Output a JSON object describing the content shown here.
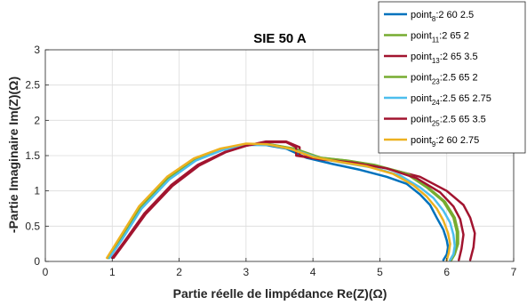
{
  "chart_data": {
    "type": "line",
    "title": "SIE 50 A",
    "xlabel": "Partie réelle de limpédance Re(Z)(Ω)",
    "ylabel": "-Partie Imaginaire Im(Z)(Ω)",
    "xlim": [
      0,
      7
    ],
    "ylim": [
      0,
      3
    ],
    "xticks": [
      0,
      1,
      2,
      3,
      4,
      5,
      6,
      7
    ],
    "yticks": [
      0,
      0.5,
      1,
      1.5,
      2,
      2.5,
      3
    ],
    "ytick_labels": [
      "0",
      "0.5",
      "1",
      "1.5",
      "2",
      "2.5",
      "3"
    ],
    "grid": true,
    "legend_position": "top-right",
    "series": [
      {
        "name": "point8:2 60 2.5",
        "label_main": "point",
        "label_sub": "8",
        "label_rest": ":2 60 2.5",
        "color": "#0072BD",
        "x": [
          0.95,
          1.1,
          1.4,
          1.8,
          2.2,
          2.6,
          3.0,
          3.3,
          3.6,
          3.9,
          4.3,
          4.7,
          5.1,
          5.4,
          5.6,
          5.75,
          5.85,
          5.95,
          6.0,
          6.02,
          6.0,
          5.95
        ],
        "y": [
          0.05,
          0.3,
          0.75,
          1.15,
          1.42,
          1.58,
          1.66,
          1.65,
          1.6,
          1.47,
          1.38,
          1.3,
          1.2,
          1.1,
          0.95,
          0.8,
          0.62,
          0.45,
          0.3,
          0.2,
          0.1,
          0.02
        ]
      },
      {
        "name": "point11:2 65 2",
        "label_main": "point",
        "label_sub": "11",
        "label_rest": ":2 65 2",
        "color": "#77AC30",
        "x": [
          0.93,
          1.12,
          1.42,
          1.83,
          2.23,
          2.63,
          3.02,
          3.35,
          3.7,
          4.1,
          4.5,
          4.9,
          5.4,
          5.7,
          5.95,
          6.1,
          6.15,
          6.15,
          6.1,
          6.05
        ],
        "y": [
          0.05,
          0.3,
          0.76,
          1.17,
          1.44,
          1.59,
          1.66,
          1.66,
          1.6,
          1.47,
          1.43,
          1.37,
          1.24,
          1.05,
          0.85,
          0.62,
          0.42,
          0.25,
          0.1,
          0.02
        ]
      },
      {
        "name": "point13:2 65 3.5",
        "label_main": "point",
        "label_sub": "13",
        "label_rest": ":2 65 3.5",
        "color": "#A2142F",
        "x": [
          1.02,
          1.2,
          1.5,
          1.9,
          2.3,
          2.7,
          3.0,
          3.3,
          3.6,
          3.8,
          3.8,
          4.1,
          4.6,
          5.1,
          5.6,
          6.0,
          6.25,
          6.35,
          6.42,
          6.4,
          6.35
        ],
        "y": [
          0.05,
          0.28,
          0.67,
          1.07,
          1.36,
          1.55,
          1.64,
          1.7,
          1.7,
          1.62,
          1.5,
          1.45,
          1.4,
          1.32,
          1.2,
          1.0,
          0.8,
          0.62,
          0.4,
          0.2,
          0.02
        ]
      },
      {
        "name": "point23:2.5 65 2",
        "label_main": "point",
        "label_sub": "23",
        "label_rest": ":2.5 65 2",
        "color": "#77AC30",
        "x": [
          0.94,
          1.13,
          1.43,
          1.84,
          2.24,
          2.64,
          3.03,
          3.36,
          3.72,
          4.12,
          4.52,
          4.92,
          5.42,
          5.72,
          5.97,
          6.12,
          6.17,
          6.17,
          6.12,
          6.07
        ],
        "y": [
          0.05,
          0.3,
          0.76,
          1.17,
          1.44,
          1.59,
          1.66,
          1.66,
          1.6,
          1.47,
          1.43,
          1.37,
          1.24,
          1.05,
          0.85,
          0.62,
          0.42,
          0.25,
          0.1,
          0.02
        ]
      },
      {
        "name": "point24:2.5 65 2.75",
        "label_main": "point",
        "label_sub": "24",
        "label_rest": ":2.5 65 2.75",
        "color": "#4DBEEE",
        "x": [
          0.96,
          1.14,
          1.44,
          1.85,
          2.25,
          2.65,
          3.04,
          3.37,
          3.72,
          4.1,
          4.5,
          4.9,
          5.3,
          5.6,
          5.8,
          5.95,
          6.05,
          6.1,
          6.12,
          6.1,
          6.05
        ],
        "y": [
          0.05,
          0.3,
          0.75,
          1.16,
          1.43,
          1.58,
          1.65,
          1.65,
          1.58,
          1.46,
          1.39,
          1.33,
          1.22,
          1.05,
          0.9,
          0.72,
          0.55,
          0.38,
          0.22,
          0.1,
          0.02
        ]
      },
      {
        "name": "point25:2.5 65 3.5",
        "label_main": "point",
        "label_sub": "25",
        "label_rest": ":2.5 65 3.5",
        "color": "#A2142F",
        "x": [
          1.0,
          1.18,
          1.48,
          1.88,
          2.28,
          2.68,
          3.0,
          3.3,
          3.6,
          3.75,
          3.75,
          4.1,
          4.6,
          5.1,
          5.55,
          5.9,
          6.1,
          6.2,
          6.25,
          6.22,
          6.18
        ],
        "y": [
          0.05,
          0.28,
          0.68,
          1.08,
          1.37,
          1.55,
          1.64,
          1.69,
          1.69,
          1.62,
          1.5,
          1.45,
          1.4,
          1.32,
          1.18,
          0.98,
          0.78,
          0.6,
          0.38,
          0.18,
          0.02
        ]
      },
      {
        "name": "point9:2 60 2.75",
        "label_main": "point",
        "label_sub": "9",
        "label_rest": ":2 60 2.75",
        "color": "#EDB120",
        "x": [
          0.92,
          1.1,
          1.4,
          1.82,
          2.22,
          2.62,
          3.0,
          3.32,
          3.65,
          4.0,
          4.4,
          4.8,
          5.2,
          5.5,
          5.7,
          5.85,
          5.95,
          6.02,
          6.05,
          6.03,
          6.0
        ],
        "y": [
          0.05,
          0.32,
          0.78,
          1.2,
          1.46,
          1.6,
          1.67,
          1.66,
          1.6,
          1.48,
          1.41,
          1.35,
          1.24,
          1.08,
          0.92,
          0.75,
          0.58,
          0.4,
          0.25,
          0.12,
          0.02
        ]
      }
    ]
  }
}
